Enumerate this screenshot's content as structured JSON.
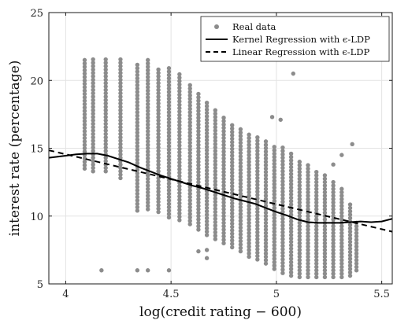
{
  "chart_data": {
    "type": "scatter",
    "xlabel": "log(credit rating − 600)",
    "ylabel": "interest rate (percentage)",
    "xlim": [
      3.92,
      5.55
    ],
    "ylim": [
      5,
      25
    ],
    "xticks": [
      4,
      4.5,
      5,
      5.5
    ],
    "xtick_labels": [
      "4",
      "4.5",
      "5",
      "5.5"
    ],
    "yticks": [
      5,
      10,
      15,
      20,
      25
    ],
    "ytick_labels": [
      "5",
      "10",
      "15",
      "20",
      "25"
    ],
    "grid": true,
    "legend_position": "top-right",
    "colors": {
      "points": "#8c8c8c",
      "lines": "#000000",
      "grid": "#e3e3e3"
    },
    "series": [
      {
        "name": "Real data",
        "kind": "scatter",
        "columns": [
          {
            "x": 4.09,
            "y_min": 13.5,
            "y_max": 21.6
          },
          {
            "x": 4.13,
            "y_min": 13.3,
            "y_max": 21.6
          },
          {
            "x": 4.19,
            "y_min": 13.3,
            "y_max": 21.6
          },
          {
            "x": 4.26,
            "y_min": 12.8,
            "y_max": 21.6
          },
          {
            "x": 4.34,
            "y_min": 10.4,
            "y_max": 21.3
          },
          {
            "x": 4.39,
            "y_min": 10.5,
            "y_max": 21.5
          },
          {
            "x": 4.44,
            "y_min": 10.3,
            "y_max": 21.0
          },
          {
            "x": 4.49,
            "y_min": 9.9,
            "y_max": 20.9
          },
          {
            "x": 4.54,
            "y_min": 9.7,
            "y_max": 20.6
          },
          {
            "x": 4.59,
            "y_min": 9.4,
            "y_max": 19.7
          },
          {
            "x": 4.63,
            "y_min": 9.0,
            "y_max": 19.0
          },
          {
            "x": 4.67,
            "y_min": 8.6,
            "y_max": 18.5
          },
          {
            "x": 4.71,
            "y_min": 8.3,
            "y_max": 17.8
          },
          {
            "x": 4.75,
            "y_min": 8.0,
            "y_max": 17.3
          },
          {
            "x": 4.79,
            "y_min": 7.7,
            "y_max": 16.8
          },
          {
            "x": 4.83,
            "y_min": 7.4,
            "y_max": 16.5
          },
          {
            "x": 4.87,
            "y_min": 7.0,
            "y_max": 16.2
          },
          {
            "x": 4.91,
            "y_min": 6.8,
            "y_max": 15.8
          },
          {
            "x": 4.95,
            "y_min": 6.5,
            "y_max": 15.6
          },
          {
            "x": 4.99,
            "y_min": 6.1,
            "y_max": 15.3
          },
          {
            "x": 5.03,
            "y_min": 5.8,
            "y_max": 15.2
          },
          {
            "x": 5.07,
            "y_min": 5.6,
            "y_max": 14.8
          },
          {
            "x": 5.11,
            "y_min": 5.5,
            "y_max": 14.0
          },
          {
            "x": 5.15,
            "y_min": 5.5,
            "y_max": 13.8
          },
          {
            "x": 5.19,
            "y_min": 5.5,
            "y_max": 13.4
          },
          {
            "x": 5.23,
            "y_min": 5.5,
            "y_max": 13.0
          },
          {
            "x": 5.27,
            "y_min": 5.5,
            "y_max": 12.6
          },
          {
            "x": 5.31,
            "y_min": 5.5,
            "y_max": 12.2
          },
          {
            "x": 5.35,
            "y_min": 5.6,
            "y_max": 11.0
          },
          {
            "x": 5.38,
            "y_min": 6.0,
            "y_max": 9.5
          }
        ],
        "outliers": [
          {
            "x": 4.17,
            "y": 6.0
          },
          {
            "x": 4.34,
            "y": 6.0
          },
          {
            "x": 4.39,
            "y": 6.0
          },
          {
            "x": 4.49,
            "y": 6.0
          },
          {
            "x": 4.63,
            "y": 7.4
          },
          {
            "x": 4.67,
            "y": 7.5
          },
          {
            "x": 4.67,
            "y": 6.9
          },
          {
            "x": 5.08,
            "y": 20.5
          },
          {
            "x": 5.02,
            "y": 17.1
          },
          {
            "x": 4.98,
            "y": 17.3
          },
          {
            "x": 5.36,
            "y": 15.3
          },
          {
            "x": 5.31,
            "y": 14.5
          },
          {
            "x": 5.27,
            "y": 13.8
          }
        ]
      },
      {
        "name": "Kernel Regression with ϵ-LDP",
        "kind": "line",
        "style": "solid",
        "x": [
          3.92,
          4.0,
          4.05,
          4.1,
          4.15,
          4.2,
          4.25,
          4.3,
          4.35,
          4.4,
          4.45,
          4.5,
          4.55,
          4.6,
          4.65,
          4.7,
          4.75,
          4.8,
          4.85,
          4.9,
          4.95,
          5.0,
          5.05,
          5.1,
          5.15,
          5.2,
          5.25,
          5.3,
          5.35,
          5.4,
          5.45,
          5.5,
          5.55
        ],
        "y": [
          14.3,
          14.45,
          14.55,
          14.6,
          14.6,
          14.45,
          14.2,
          13.95,
          13.6,
          13.3,
          13.0,
          12.75,
          12.5,
          12.25,
          12.05,
          11.8,
          11.55,
          11.3,
          11.1,
          10.9,
          10.6,
          10.3,
          10.05,
          9.75,
          9.55,
          9.5,
          9.5,
          9.5,
          9.55,
          9.6,
          9.55,
          9.6,
          9.8
        ]
      },
      {
        "name": "Linear Regression with ϵ-LDP",
        "kind": "line",
        "style": "dashed",
        "x": [
          3.92,
          5.55
        ],
        "y": [
          14.85,
          8.85
        ]
      }
    ]
  }
}
